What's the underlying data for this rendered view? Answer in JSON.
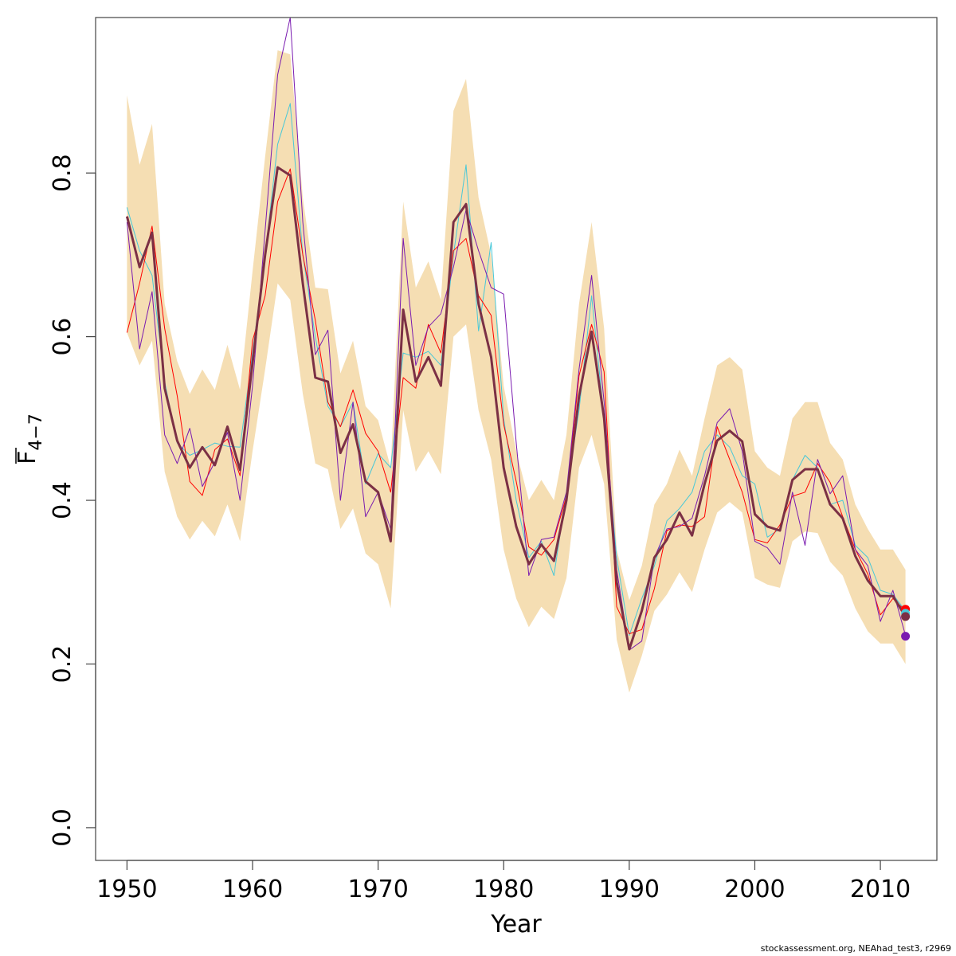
{
  "chart_data": {
    "type": "line",
    "xlabel": "Year",
    "ylabel_main": "F",
    "ylabel_sub": "4−7",
    "xlim": [
      1947.5,
      2014.5
    ],
    "ylim": [
      -0.04,
      0.99
    ],
    "xticks": [
      1950,
      1960,
      1970,
      1980,
      1990,
      2000,
      2010
    ],
    "yticks": [
      0.0,
      0.2,
      0.4,
      0.6,
      0.8
    ],
    "ytick_labels": [
      "0.0",
      "0.2",
      "0.4",
      "0.6",
      "0.8"
    ],
    "grid": false,
    "colors": {
      "band": "#f5deb3",
      "main": "#7b3045",
      "red": "#ff0000",
      "cyan": "#48c8d8",
      "purple": "#7a1bb0"
    },
    "x": [
      1950,
      1951,
      1952,
      1953,
      1954,
      1955,
      1956,
      1957,
      1958,
      1959,
      1960,
      1961,
      1962,
      1963,
      1964,
      1965,
      1966,
      1967,
      1968,
      1969,
      1970,
      1971,
      1972,
      1973,
      1974,
      1975,
      1976,
      1977,
      1978,
      1979,
      1980,
      1981,
      1982,
      1983,
      1984,
      1985,
      1986,
      1987,
      1988,
      1989,
      1990,
      1991,
      1992,
      1993,
      1994,
      1995,
      1996,
      1997,
      1998,
      1999,
      2000,
      2001,
      2002,
      2003,
      2004,
      2005,
      2006,
      2007,
      2008,
      2009,
      2010,
      2011,
      2012
    ],
    "band_upper": [
      0.895,
      0.81,
      0.86,
      0.64,
      0.57,
      0.53,
      0.56,
      0.535,
      0.59,
      0.535,
      0.68,
      0.82,
      0.95,
      0.945,
      0.77,
      0.66,
      0.658,
      0.555,
      0.595,
      0.515,
      0.498,
      0.44,
      0.765,
      0.66,
      0.692,
      0.645,
      0.876,
      0.915,
      0.77,
      0.7,
      0.54,
      0.46,
      0.4,
      0.425,
      0.4,
      0.48,
      0.64,
      0.74,
      0.61,
      0.34,
      0.278,
      0.32,
      0.395,
      0.42,
      0.462,
      0.43,
      0.5,
      0.565,
      0.575,
      0.56,
      0.46,
      0.44,
      0.43,
      0.5,
      0.52,
      0.52,
      0.47,
      0.45,
      0.395,
      0.365,
      0.34,
      0.34,
      0.315
    ],
    "band_lower": [
      0.605,
      0.565,
      0.595,
      0.435,
      0.38,
      0.352,
      0.375,
      0.356,
      0.395,
      0.35,
      0.46,
      0.56,
      0.665,
      0.645,
      0.53,
      0.445,
      0.438,
      0.365,
      0.39,
      0.335,
      0.322,
      0.268,
      0.51,
      0.435,
      0.46,
      0.432,
      0.6,
      0.615,
      0.51,
      0.45,
      0.34,
      0.28,
      0.245,
      0.27,
      0.255,
      0.305,
      0.44,
      0.48,
      0.42,
      0.23,
      0.165,
      0.21,
      0.265,
      0.285,
      0.312,
      0.288,
      0.34,
      0.385,
      0.398,
      0.385,
      0.305,
      0.297,
      0.293,
      0.35,
      0.362,
      0.36,
      0.325,
      0.308,
      0.268,
      0.24,
      0.225,
      0.225,
      0.2
    ],
    "series": [
      {
        "key": "cyan",
        "values": [
          0.758,
          0.705,
          0.675,
          0.545,
          0.47,
          0.455,
          0.462,
          0.47,
          0.466,
          0.465,
          0.58,
          0.7,
          0.835,
          0.885,
          0.7,
          0.6,
          0.515,
          0.49,
          0.52,
          0.42,
          0.457,
          0.44,
          0.58,
          0.575,
          0.582,
          0.565,
          0.7,
          0.81,
          0.607,
          0.715,
          0.5,
          0.4,
          0.33,
          0.35,
          0.308,
          0.41,
          0.51,
          0.65,
          0.5,
          0.33,
          0.235,
          0.28,
          0.32,
          0.375,
          0.39,
          0.41,
          0.46,
          0.48,
          0.465,
          0.43,
          0.42,
          0.355,
          0.365,
          0.425,
          0.455,
          0.44,
          0.395,
          0.4,
          0.345,
          0.33,
          0.29,
          0.285,
          0.265
        ]
      },
      {
        "key": "red",
        "values": [
          0.605,
          0.665,
          0.735,
          0.61,
          0.528,
          0.423,
          0.406,
          0.462,
          0.475,
          0.43,
          0.595,
          0.65,
          0.765,
          0.805,
          0.7,
          0.62,
          0.52,
          0.49,
          0.535,
          0.482,
          0.46,
          0.41,
          0.55,
          0.537,
          0.615,
          0.58,
          0.705,
          0.72,
          0.65,
          0.626,
          0.493,
          0.423,
          0.343,
          0.333,
          0.352,
          0.405,
          0.552,
          0.615,
          0.557,
          0.27,
          0.237,
          0.242,
          0.292,
          0.363,
          0.37,
          0.368,
          0.38,
          0.49,
          0.45,
          0.41,
          0.352,
          0.348,
          0.37,
          0.405,
          0.41,
          0.445,
          0.422,
          0.38,
          0.34,
          0.31,
          0.26,
          0.28,
          0.265
        ]
      },
      {
        "key": "purple",
        "values": [
          0.74,
          0.585,
          0.655,
          0.48,
          0.445,
          0.488,
          0.417,
          0.447,
          0.483,
          0.4,
          0.54,
          0.73,
          0.92,
          0.99,
          0.74,
          0.578,
          0.608,
          0.4,
          0.52,
          0.38,
          0.41,
          0.365,
          0.72,
          0.565,
          0.612,
          0.628,
          0.685,
          0.755,
          0.705,
          0.66,
          0.652,
          0.47,
          0.308,
          0.352,
          0.355,
          0.41,
          0.56,
          0.675,
          0.52,
          0.315,
          0.217,
          0.228,
          0.33,
          0.365,
          0.368,
          0.378,
          0.43,
          0.495,
          0.512,
          0.46,
          0.35,
          0.342,
          0.322,
          0.41,
          0.345,
          0.45,
          0.408,
          0.43,
          0.34,
          0.32,
          0.252,
          0.29,
          0.235
        ]
      },
      {
        "key": "main",
        "values": [
          0.747,
          0.685,
          0.727,
          0.537,
          0.473,
          0.44,
          0.465,
          0.443,
          0.49,
          0.437,
          0.568,
          0.7,
          0.807,
          0.797,
          0.665,
          0.55,
          0.545,
          0.458,
          0.493,
          0.423,
          0.41,
          0.35,
          0.633,
          0.545,
          0.575,
          0.54,
          0.74,
          0.762,
          0.64,
          0.575,
          0.44,
          0.368,
          0.322,
          0.346,
          0.326,
          0.4,
          0.527,
          0.606,
          0.5,
          0.3,
          0.218,
          0.265,
          0.33,
          0.352,
          0.385,
          0.357,
          0.42,
          0.473,
          0.485,
          0.472,
          0.383,
          0.368,
          0.363,
          0.425,
          0.438,
          0.438,
          0.395,
          0.378,
          0.332,
          0.302,
          0.283,
          0.283,
          0.258
        ]
      }
    ],
    "endpoints": [
      {
        "key": "red",
        "year": 2012,
        "value": 0.267
      },
      {
        "key": "cyan",
        "year": 2012,
        "value": 0.262
      },
      {
        "key": "main",
        "year": 2012,
        "value": 0.258
      },
      {
        "key": "purple",
        "year": 2012,
        "value": 0.234
      }
    ]
  },
  "footer": "stockassessment.org, NEAhad_test3, r2969"
}
